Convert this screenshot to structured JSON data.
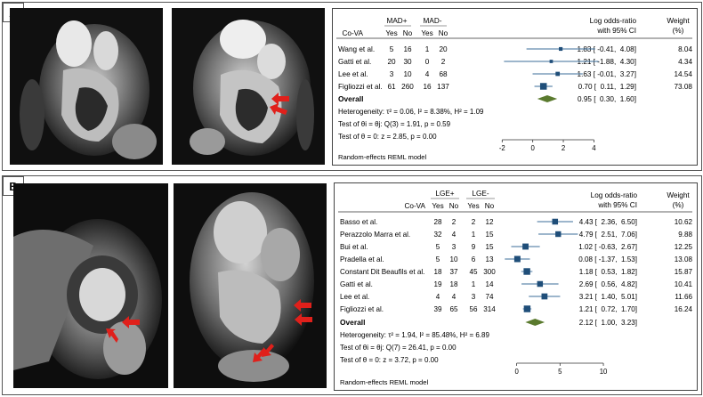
{
  "panels": [
    {
      "label": "A",
      "forest": {
        "group_headers": [
          "MAD+",
          "MAD-"
        ],
        "col_headers": [
          "Co-VA",
          "Yes",
          "No",
          "Yes",
          "No"
        ],
        "effect_header": [
          "Log odds-ratio",
          "with 95% CI"
        ],
        "weight_header": [
          "Weight",
          "(%)"
        ],
        "studies": [
          {
            "name": "Wang et al.",
            "a": "5",
            "b": "16",
            "c": "1",
            "d": "20",
            "ci_text": "1.83 [ -0.41,  4.08]",
            "weight": "8.04"
          },
          {
            "name": "Gatti et al.",
            "a": "20",
            "b": "30",
            "c": "0",
            "d": "2",
            "ci_text": "1.21 [ -1.88,  4.30]",
            "weight": "4.34"
          },
          {
            "name": "Lee et al.",
            "a": "3",
            "b": "10",
            "c": "4",
            "d": "68",
            "ci_text": "1.63 [ -0.01,  3.27]",
            "weight": "14.54"
          },
          {
            "name": "Figliozzi et al.",
            "a": "61",
            "b": "260",
            "c": "16",
            "d": "137",
            "ci_text": "0.70 [  0.11,  1.29]",
            "weight": "73.08"
          }
        ],
        "overall": {
          "label": "Overall",
          "ci_text": "0.95 [  0.30,  1.60]"
        },
        "stats": [
          "Heterogeneity: τ² = 0.06, I² = 8.38%, H² = 1.09",
          "Test of θi = θj: Q(3) = 1.91, p = 0.59",
          "Test of θ = 0: z = 2.85, p = 0.00"
        ],
        "axis_ticks": [
          "-2",
          "0",
          "2",
          "4"
        ],
        "model": "Random-effects REML model"
      }
    },
    {
      "label": "B",
      "forest": {
        "group_headers": [
          "LGE+",
          "LGE-"
        ],
        "col_headers": [
          "Co-VA",
          "Yes",
          "No",
          "Yes",
          "No"
        ],
        "effect_header": [
          "Log odds-ratio",
          "with 95% CI"
        ],
        "weight_header": [
          "Weight",
          "(%)"
        ],
        "studies": [
          {
            "name": "Basso et al.",
            "a": "28",
            "b": "2",
            "c": "2",
            "d": "12",
            "ci_text": "4.43 [  2.36,  6.50]",
            "weight": "10.62"
          },
          {
            "name": "Perazzolo Marra et al.",
            "a": "32",
            "b": "4",
            "c": "1",
            "d": "15",
            "ci_text": "4.79 [  2.51,  7.06]",
            "weight": "9.88"
          },
          {
            "name": "Bui et al.",
            "a": "5",
            "b": "3",
            "c": "9",
            "d": "15",
            "ci_text": "1.02 [ -0.63,  2.67]",
            "weight": "12.25"
          },
          {
            "name": "Pradella et al.",
            "a": "5",
            "b": "10",
            "c": "6",
            "d": "13",
            "ci_text": "0.08 [ -1.37,  1.53]",
            "weight": "13.08"
          },
          {
            "name": "Constant Dit Beaufils et al.",
            "a": "18",
            "b": "37",
            "c": "45",
            "d": "300",
            "ci_text": "1.18 [  0.53,  1.82]",
            "weight": "15.87"
          },
          {
            "name": "Gatti et al.",
            "a": "19",
            "b": "18",
            "c": "1",
            "d": "14",
            "ci_text": "2.69 [  0.56,  4.82]",
            "weight": "10.41"
          },
          {
            "name": "Lee et al.",
            "a": "4",
            "b": "4",
            "c": "3",
            "d": "74",
            "ci_text": "3.21 [  1.40,  5.01]",
            "weight": "11.66"
          },
          {
            "name": "Figliozzi et al.",
            "a": "39",
            "b": "65",
            "c": "56",
            "d": "314",
            "ci_text": "1.21 [  0.72,  1.70]",
            "weight": "16.24"
          }
        ],
        "overall": {
          "label": "Overall",
          "ci_text": "2.12 [  1.00,  3.23]"
        },
        "stats": [
          "Heterogeneity: τ² = 1.94, I² = 85.48%, H² = 6.89",
          "Test of θi = θj: Q(7) = 26.41, p = 0.00",
          "Test of θ = 0: z = 3.72, p = 0.00"
        ],
        "axis_ticks": [
          "0",
          "5",
          "10"
        ],
        "model": "Random-effects REML model"
      }
    }
  ],
  "chart_data": [
    {
      "type": "forest",
      "xlim": [
        -2.6,
        4.5
      ],
      "ticks": [
        -2,
        0,
        2,
        4
      ],
      "studies": [
        {
          "name": "Wang et al.",
          "estimate": 1.83,
          "lower": -0.41,
          "upper": 4.08,
          "weight": 8.04
        },
        {
          "name": "Gatti et al.",
          "estimate": 1.21,
          "lower": -1.88,
          "upper": 4.3,
          "weight": 4.34
        },
        {
          "name": "Lee et al.",
          "estimate": 1.63,
          "lower": -0.01,
          "upper": 3.27,
          "weight": 14.54
        },
        {
          "name": "Figliozzi et al.",
          "estimate": 0.7,
          "lower": 0.11,
          "upper": 1.29,
          "weight": 73.08
        }
      ],
      "overall": {
        "estimate": 0.95,
        "lower": 0.3,
        "upper": 1.6
      }
    },
    {
      "type": "forest",
      "xlim": [
        -1.5,
        10.2
      ],
      "ticks": [
        0,
        5,
        10
      ],
      "studies": [
        {
          "name": "Basso et al.",
          "estimate": 4.43,
          "lower": 2.36,
          "upper": 6.5,
          "weight": 10.62
        },
        {
          "name": "Perazzolo Marra et al.",
          "estimate": 4.79,
          "lower": 2.51,
          "upper": 7.06,
          "weight": 9.88
        },
        {
          "name": "Bui et al.",
          "estimate": 1.02,
          "lower": -0.63,
          "upper": 2.67,
          "weight": 12.25
        },
        {
          "name": "Pradella et al.",
          "estimate": 0.08,
          "lower": -1.37,
          "upper": 1.53,
          "weight": 13.08
        },
        {
          "name": "Constant Dit Beaufils et al.",
          "estimate": 1.18,
          "lower": 0.53,
          "upper": 1.82,
          "weight": 15.87
        },
        {
          "name": "Gatti et al.",
          "estimate": 2.69,
          "lower": 0.56,
          "upper": 4.82,
          "weight": 10.41
        },
        {
          "name": "Lee et al.",
          "estimate": 3.21,
          "lower": 1.4,
          "upper": 5.01,
          "weight": 11.66
        },
        {
          "name": "Figliozzi et al.",
          "estimate": 1.21,
          "lower": 0.72,
          "upper": 1.7,
          "weight": 16.24
        }
      ],
      "overall": {
        "estimate": 2.12,
        "lower": 1.0,
        "upper": 3.23
      }
    }
  ],
  "colors": {
    "marker": "#1f4e79",
    "ci_line": "#3b6e9a",
    "diamond": "#5a7a2e",
    "arrow": "#e0201b",
    "border": "#555555"
  }
}
